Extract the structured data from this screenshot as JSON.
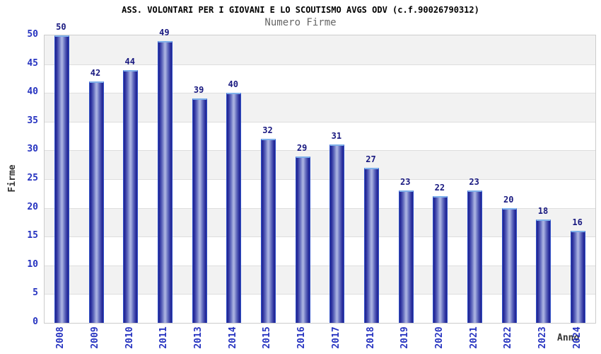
{
  "chart_data": {
    "type": "bar",
    "title": "ASS. VOLONTARI PER I GIOVANI E LO SCOUTISMO AVGS ODV (c.f.90026790312)",
    "subtitle": "Numero Firme",
    "xlabel": "Anno",
    "ylabel": "Firme",
    "categories": [
      "2008",
      "2009",
      "2010",
      "2011",
      "2013",
      "2014",
      "2015",
      "2016",
      "2017",
      "2018",
      "2019",
      "2020",
      "2021",
      "2022",
      "2023",
      "2024"
    ],
    "values": [
      50,
      42,
      44,
      49,
      39,
      40,
      32,
      29,
      31,
      27,
      23,
      22,
      23,
      20,
      18,
      16
    ],
    "ylim": [
      0,
      50
    ],
    "ytick_step": 5,
    "grid": "on",
    "legend": "none",
    "colors": {
      "bar_edge": "#20248e",
      "bar_edge2": "#2b309f",
      "bar_mid": "#6770c0",
      "bar_center": "#a8b0e0",
      "bar_outline": "#3050c8",
      "bar_cap": "#7fb0ea",
      "tick_label": "#2633c0",
      "value_label": "#191980",
      "band_gray": "#f2f2f2",
      "band_white": "#ffffff",
      "gridline": "#dedede",
      "plot_border": "#cccccc",
      "title_color": "#000000",
      "subtitle_color": "#666666",
      "axis_label_color": "#333333"
    }
  }
}
